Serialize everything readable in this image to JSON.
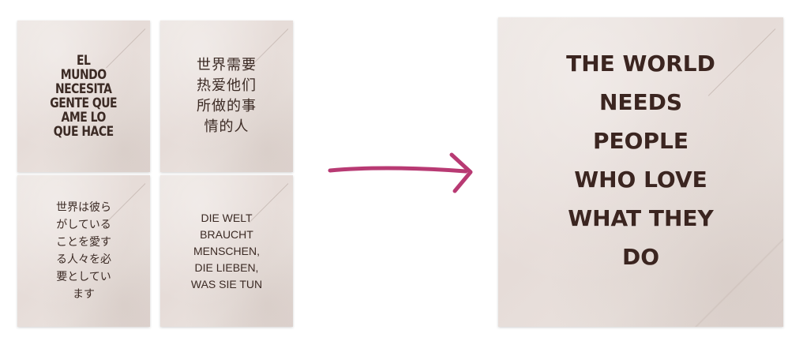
{
  "cards": {
    "spanish": {
      "text": "EL\nMUNDO\nNECESITA\nGENTE QUE\nAME LO\nQUE HACE"
    },
    "chinese": {
      "text": "世界需要\n热爱他们\n所做的事\n情的人"
    },
    "japanese": {
      "text": "世界は彼ら\nがしている\nことを愛す\nる人々を必\n要としてい\nます"
    },
    "german": {
      "text": "DIE WELT\nBRAUCHT\nMENSCHEN,\nDIE LIEBEN,\nWAS SIE TUN"
    },
    "english": {
      "text": "THE WORLD\nNEEDS\nPEOPLE\nWHO LOVE\nWHAT THEY\nDO"
    }
  },
  "colors": {
    "arrow": "#b83a73",
    "text": "#3b2a24",
    "card_bg": "#e9e1dd"
  },
  "icons": {
    "arrow": "right-arrow-icon"
  }
}
